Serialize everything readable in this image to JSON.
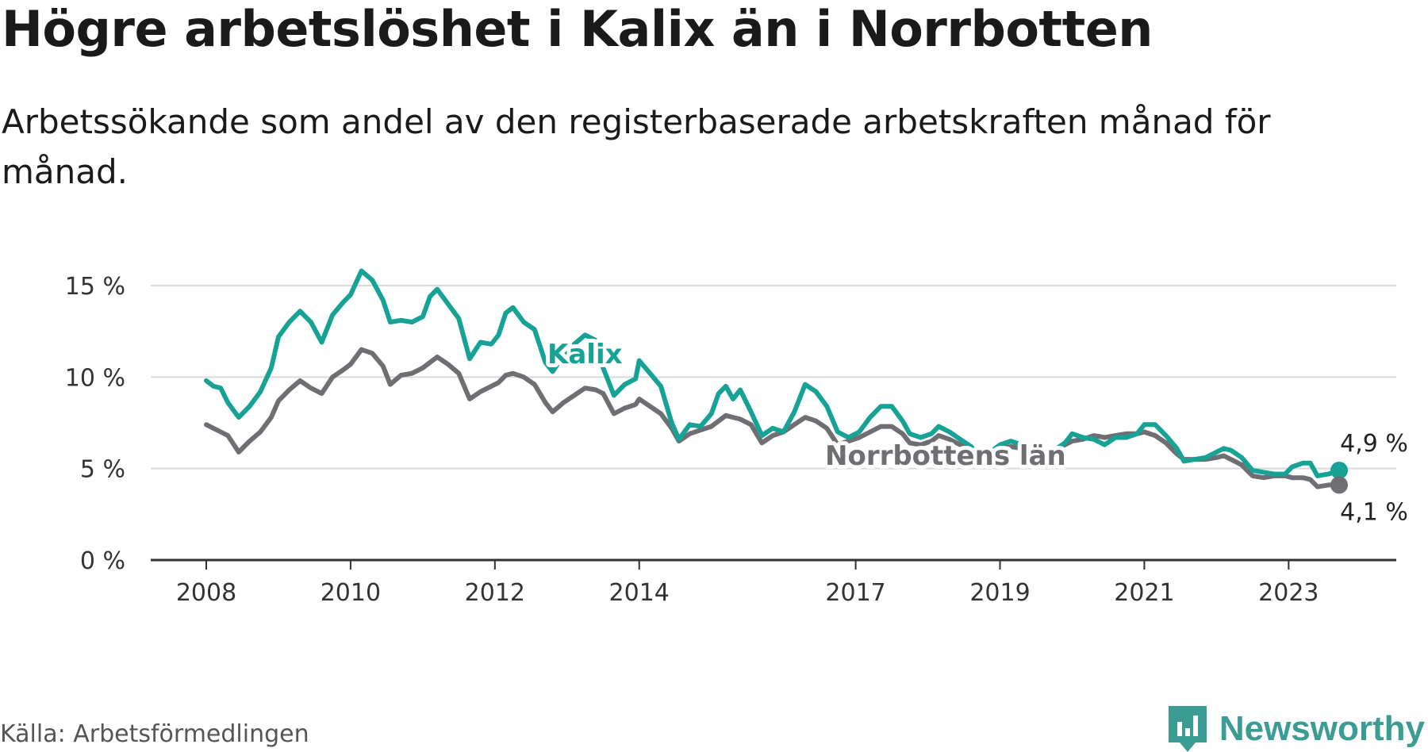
{
  "header": {
    "title": "Högre arbetslöshet i Kalix än i Norrbotten",
    "subtitle": "Arbetssökande som andel av den registerbaserade arbetskraften månad för månad."
  },
  "footer": {
    "source": "Källa: Arbetsförmedlingen",
    "brand": "Newsworthy"
  },
  "colors": {
    "kalix": "#16a396",
    "norrbotten": "#6f6e73",
    "grid": "#d9d9d9",
    "axis": "#333333",
    "brand": "#3a9c92"
  },
  "chart_data": {
    "type": "line",
    "title": "Högre arbetslöshet i Kalix än i Norrbotten",
    "xlabel": "",
    "ylabel": "",
    "ylim": [
      0,
      15
    ],
    "xlim": [
      2008.0,
      2023.7
    ],
    "y_ticks": [
      {
        "value": 0,
        "label": "0 %"
      },
      {
        "value": 5,
        "label": "5 %"
      },
      {
        "value": 10,
        "label": "10 %"
      },
      {
        "value": 15,
        "label": "15 %"
      }
    ],
    "x_ticks": [
      {
        "value": 2008,
        "label": "2008"
      },
      {
        "value": 2010,
        "label": "2010"
      },
      {
        "value": 2012,
        "label": "2012"
      },
      {
        "value": 2014,
        "label": "2014"
      },
      {
        "value": 2017,
        "label": "2017"
      },
      {
        "value": 2019,
        "label": "2019"
      },
      {
        "value": 2021,
        "label": "2021"
      },
      {
        "value": 2023,
        "label": "2023"
      }
    ],
    "grid": true,
    "series": [
      {
        "name": "Kalix",
        "color_key": "kalix",
        "end_label": "4,9 %",
        "points": [
          [
            2008.0,
            9.8
          ],
          [
            2008.1,
            9.5
          ],
          [
            2008.2,
            9.4
          ],
          [
            2008.3,
            8.6
          ],
          [
            2008.45,
            7.8
          ],
          [
            2008.6,
            8.4
          ],
          [
            2008.75,
            9.2
          ],
          [
            2008.9,
            10.5
          ],
          [
            2009.0,
            12.2
          ],
          [
            2009.15,
            13.0
          ],
          [
            2009.3,
            13.6
          ],
          [
            2009.45,
            13.0
          ],
          [
            2009.6,
            11.9
          ],
          [
            2009.75,
            13.4
          ],
          [
            2009.9,
            14.1
          ],
          [
            2010.0,
            14.5
          ],
          [
            2010.15,
            15.8
          ],
          [
            2010.3,
            15.3
          ],
          [
            2010.45,
            14.2
          ],
          [
            2010.55,
            13.0
          ],
          [
            2010.7,
            13.1
          ],
          [
            2010.85,
            13.0
          ],
          [
            2011.0,
            13.3
          ],
          [
            2011.1,
            14.4
          ],
          [
            2011.2,
            14.8
          ],
          [
            2011.35,
            14.0
          ],
          [
            2011.5,
            13.2
          ],
          [
            2011.65,
            11.0
          ],
          [
            2011.8,
            11.9
          ],
          [
            2011.95,
            11.8
          ],
          [
            2012.05,
            12.3
          ],
          [
            2012.15,
            13.5
          ],
          [
            2012.25,
            13.8
          ],
          [
            2012.4,
            13.0
          ],
          [
            2012.55,
            12.6
          ],
          [
            2012.7,
            10.8
          ],
          [
            2012.8,
            10.3
          ],
          [
            2012.95,
            11.2
          ],
          [
            2013.1,
            11.8
          ],
          [
            2013.25,
            12.3
          ],
          [
            2013.4,
            12.0
          ],
          [
            2013.5,
            10.5
          ],
          [
            2013.65,
            9.0
          ],
          [
            2013.8,
            9.6
          ],
          [
            2013.95,
            9.9
          ],
          [
            2014.0,
            10.9
          ],
          [
            2014.15,
            10.2
          ],
          [
            2014.3,
            9.5
          ],
          [
            2014.45,
            7.5
          ],
          [
            2014.55,
            6.6
          ],
          [
            2014.7,
            7.4
          ],
          [
            2014.85,
            7.3
          ],
          [
            2015.0,
            8.0
          ],
          [
            2015.1,
            9.1
          ],
          [
            2015.2,
            9.5
          ],
          [
            2015.3,
            8.8
          ],
          [
            2015.4,
            9.3
          ],
          [
            2015.55,
            8.1
          ],
          [
            2015.7,
            6.8
          ],
          [
            2015.85,
            7.2
          ],
          [
            2016.0,
            7.0
          ],
          [
            2016.15,
            8.1
          ],
          [
            2016.3,
            9.6
          ],
          [
            2016.45,
            9.2
          ],
          [
            2016.6,
            8.4
          ],
          [
            2016.75,
            7.0
          ],
          [
            2016.9,
            6.7
          ],
          [
            2017.05,
            7.0
          ],
          [
            2017.2,
            7.8
          ],
          [
            2017.35,
            8.4
          ],
          [
            2017.5,
            8.4
          ],
          [
            2017.65,
            7.6
          ],
          [
            2017.75,
            6.9
          ],
          [
            2017.9,
            6.7
          ],
          [
            2018.05,
            6.9
          ],
          [
            2018.15,
            7.3
          ],
          [
            2018.3,
            7.0
          ],
          [
            2018.45,
            6.6
          ],
          [
            2018.6,
            6.2
          ],
          [
            2018.75,
            5.5
          ],
          [
            2018.9,
            6.0
          ],
          [
            2019.0,
            6.3
          ],
          [
            2019.15,
            6.5
          ],
          [
            2019.3,
            6.3
          ],
          [
            2019.45,
            5.9
          ],
          [
            2019.6,
            5.6
          ],
          [
            2019.75,
            6.0
          ],
          [
            2019.9,
            6.4
          ],
          [
            2020.0,
            6.9
          ],
          [
            2020.15,
            6.7
          ],
          [
            2020.3,
            6.6
          ],
          [
            2020.45,
            6.3
          ],
          [
            2020.6,
            6.7
          ],
          [
            2020.75,
            6.7
          ],
          [
            2020.9,
            6.9
          ],
          [
            2021.0,
            7.4
          ],
          [
            2021.15,
            7.4
          ],
          [
            2021.3,
            6.8
          ],
          [
            2021.45,
            6.1
          ],
          [
            2021.55,
            5.4
          ],
          [
            2021.7,
            5.5
          ],
          [
            2021.85,
            5.6
          ],
          [
            2022.0,
            5.9
          ],
          [
            2022.1,
            6.1
          ],
          [
            2022.2,
            6.0
          ],
          [
            2022.35,
            5.6
          ],
          [
            2022.5,
            4.9
          ],
          [
            2022.65,
            4.8
          ],
          [
            2022.8,
            4.7
          ],
          [
            2022.95,
            4.7
          ],
          [
            2023.05,
            5.1
          ],
          [
            2023.2,
            5.3
          ],
          [
            2023.3,
            5.3
          ],
          [
            2023.4,
            4.6
          ],
          [
            2023.55,
            4.7
          ],
          [
            2023.7,
            4.9
          ]
        ]
      },
      {
        "name": "Norrbottens län",
        "color_key": "norrbotten",
        "end_label": "4,1 %",
        "points": [
          [
            2008.0,
            7.4
          ],
          [
            2008.1,
            7.2
          ],
          [
            2008.2,
            7.0
          ],
          [
            2008.3,
            6.8
          ],
          [
            2008.45,
            5.9
          ],
          [
            2008.6,
            6.5
          ],
          [
            2008.75,
            7.0
          ],
          [
            2008.9,
            7.8
          ],
          [
            2009.0,
            8.7
          ],
          [
            2009.15,
            9.3
          ],
          [
            2009.3,
            9.8
          ],
          [
            2009.45,
            9.4
          ],
          [
            2009.6,
            9.1
          ],
          [
            2009.75,
            10.0
          ],
          [
            2009.9,
            10.4
          ],
          [
            2010.0,
            10.7
          ],
          [
            2010.15,
            11.5
          ],
          [
            2010.3,
            11.3
          ],
          [
            2010.45,
            10.6
          ],
          [
            2010.55,
            9.6
          ],
          [
            2010.7,
            10.1
          ],
          [
            2010.85,
            10.2
          ],
          [
            2011.0,
            10.5
          ],
          [
            2011.1,
            10.8
          ],
          [
            2011.2,
            11.1
          ],
          [
            2011.35,
            10.7
          ],
          [
            2011.5,
            10.2
          ],
          [
            2011.65,
            8.8
          ],
          [
            2011.8,
            9.2
          ],
          [
            2011.95,
            9.5
          ],
          [
            2012.05,
            9.7
          ],
          [
            2012.15,
            10.1
          ],
          [
            2012.25,
            10.2
          ],
          [
            2012.4,
            10.0
          ],
          [
            2012.55,
            9.6
          ],
          [
            2012.7,
            8.6
          ],
          [
            2012.8,
            8.1
          ],
          [
            2012.95,
            8.6
          ],
          [
            2013.1,
            9.0
          ],
          [
            2013.25,
            9.4
          ],
          [
            2013.4,
            9.3
          ],
          [
            2013.5,
            9.1
          ],
          [
            2013.65,
            8.0
          ],
          [
            2013.8,
            8.3
          ],
          [
            2013.95,
            8.5
          ],
          [
            2014.0,
            8.8
          ],
          [
            2014.15,
            8.4
          ],
          [
            2014.3,
            8.0
          ],
          [
            2014.45,
            7.2
          ],
          [
            2014.55,
            6.5
          ],
          [
            2014.7,
            6.9
          ],
          [
            2014.85,
            7.1
          ],
          [
            2015.0,
            7.3
          ],
          [
            2015.1,
            7.6
          ],
          [
            2015.2,
            7.9
          ],
          [
            2015.3,
            7.8
          ],
          [
            2015.4,
            7.7
          ],
          [
            2015.55,
            7.4
          ],
          [
            2015.7,
            6.4
          ],
          [
            2015.85,
            6.8
          ],
          [
            2016.0,
            7.0
          ],
          [
            2016.15,
            7.4
          ],
          [
            2016.3,
            7.8
          ],
          [
            2016.45,
            7.6
          ],
          [
            2016.6,
            7.2
          ],
          [
            2016.75,
            6.3
          ],
          [
            2016.9,
            6.5
          ],
          [
            2017.05,
            6.7
          ],
          [
            2017.2,
            7.0
          ],
          [
            2017.35,
            7.3
          ],
          [
            2017.5,
            7.3
          ],
          [
            2017.65,
            6.9
          ],
          [
            2017.75,
            6.4
          ],
          [
            2017.9,
            6.3
          ],
          [
            2018.05,
            6.5
          ],
          [
            2018.15,
            6.8
          ],
          [
            2018.3,
            6.6
          ],
          [
            2018.45,
            6.3
          ],
          [
            2018.6,
            6.0
          ],
          [
            2018.75,
            5.8
          ],
          [
            2018.9,
            5.9
          ],
          [
            2019.0,
            6.1
          ],
          [
            2019.15,
            6.2
          ],
          [
            2019.3,
            6.1
          ],
          [
            2019.45,
            5.9
          ],
          [
            2019.6,
            5.8
          ],
          [
            2019.75,
            6.0
          ],
          [
            2019.9,
            6.3
          ],
          [
            2020.0,
            6.5
          ],
          [
            2020.15,
            6.6
          ],
          [
            2020.3,
            6.8
          ],
          [
            2020.45,
            6.7
          ],
          [
            2020.6,
            6.8
          ],
          [
            2020.75,
            6.9
          ],
          [
            2020.9,
            6.9
          ],
          [
            2021.0,
            7.0
          ],
          [
            2021.15,
            6.8
          ],
          [
            2021.3,
            6.4
          ],
          [
            2021.45,
            5.8
          ],
          [
            2021.55,
            5.5
          ],
          [
            2021.7,
            5.5
          ],
          [
            2021.85,
            5.5
          ],
          [
            2022.0,
            5.6
          ],
          [
            2022.1,
            5.7
          ],
          [
            2022.2,
            5.5
          ],
          [
            2022.35,
            5.2
          ],
          [
            2022.5,
            4.6
          ],
          [
            2022.65,
            4.5
          ],
          [
            2022.8,
            4.6
          ],
          [
            2022.95,
            4.6
          ],
          [
            2023.05,
            4.5
          ],
          [
            2023.2,
            4.5
          ],
          [
            2023.3,
            4.4
          ],
          [
            2023.4,
            4.0
          ],
          [
            2023.55,
            4.1
          ],
          [
            2023.7,
            4.1
          ]
        ]
      }
    ]
  }
}
